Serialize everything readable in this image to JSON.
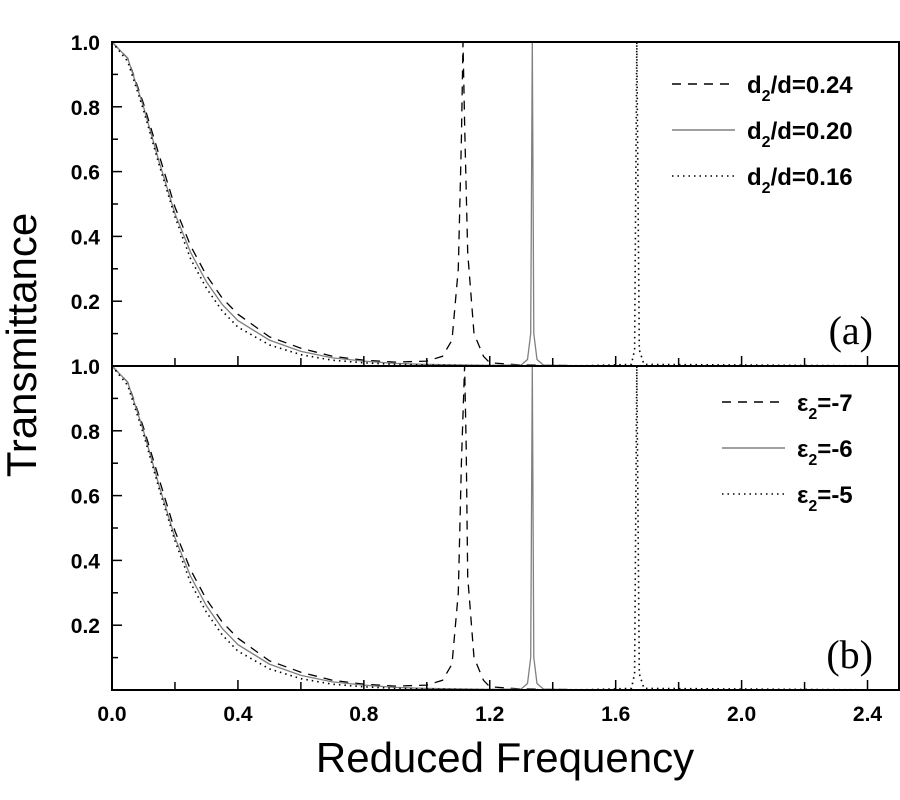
{
  "chart_data": {
    "type": "line",
    "xlabel": "Reduced Frequency",
    "ylabel": "Transmittance",
    "xlim": [
      0,
      2.5
    ],
    "x_ticks": [
      "0.0",
      "0.4",
      "0.8",
      "1.2",
      "1.6",
      "2.0",
      "2.4"
    ],
    "grid": false,
    "panels": [
      {
        "label": "(a)",
        "ylim": [
          0,
          1.0
        ],
        "y_ticks": [
          "0.2",
          "0.4",
          "0.6",
          "0.8",
          "1.0"
        ],
        "legend_placement": "top-right",
        "legend": [
          {
            "base": "d",
            "sub": "2",
            "rest": "/d=0.24",
            "style": "dashed"
          },
          {
            "base": "d",
            "sub": "2",
            "rest": "/d=0.20",
            "style": "solid"
          },
          {
            "base": "d",
            "sub": "2",
            "rest": "/d=0.16",
            "style": "dotted"
          }
        ],
        "series": [
          {
            "name": "d2/d=0.24",
            "style": "dashed",
            "color": "#000000",
            "x": [
              0,
              0.05,
              0.1,
              0.15,
              0.2,
              0.25,
              0.3,
              0.35,
              0.4,
              0.5,
              0.6,
              0.7,
              0.8,
              0.9,
              1.0,
              1.05,
              1.08,
              1.1,
              1.11,
              1.115,
              1.12,
              1.13,
              1.15,
              1.18,
              1.2,
              1.3,
              1.5,
              2.5
            ],
            "y": [
              1,
              0.95,
              0.81,
              0.65,
              0.49,
              0.37,
              0.28,
              0.21,
              0.16,
              0.09,
              0.055,
              0.03,
              0.018,
              0.012,
              0.015,
              0.03,
              0.08,
              0.3,
              0.7,
              1.0,
              0.75,
              0.35,
              0.1,
              0.03,
              0.01,
              0.003,
              0.001,
              0
            ]
          },
          {
            "name": "d2/d=0.20",
            "style": "solid",
            "color": "#808080",
            "x": [
              0,
              0.05,
              0.1,
              0.15,
              0.2,
              0.25,
              0.3,
              0.35,
              0.4,
              0.5,
              0.6,
              0.7,
              0.8,
              0.9,
              1.0,
              1.2,
              1.3,
              1.32,
              1.33,
              1.335,
              1.34,
              1.35,
              1.37,
              1.5,
              2.5
            ],
            "y": [
              1,
              0.95,
              0.8,
              0.63,
              0.47,
              0.35,
              0.26,
              0.19,
              0.14,
              0.08,
              0.045,
              0.025,
              0.015,
              0.008,
              0.005,
              0.002,
              0.003,
              0.02,
              0.1,
              1.0,
              0.1,
              0.02,
              0.003,
              0,
              0
            ]
          },
          {
            "name": "d2/d=0.16",
            "style": "dotted",
            "color": "#000000",
            "x": [
              0,
              0.05,
              0.1,
              0.15,
              0.2,
              0.25,
              0.3,
              0.35,
              0.4,
              0.5,
              0.6,
              0.7,
              0.8,
              0.9,
              1.0,
              1.2,
              1.5,
              1.65,
              1.66,
              1.667,
              1.675,
              1.69,
              2.5
            ],
            "y": [
              1,
              0.94,
              0.79,
              0.62,
              0.46,
              0.33,
              0.24,
              0.17,
              0.12,
              0.065,
              0.035,
              0.018,
              0.01,
              0.005,
              0.003,
              0.001,
              0.001,
              0.005,
              0.05,
              1.0,
              0.05,
              0.005,
              0
            ]
          }
        ]
      },
      {
        "label": "(b)",
        "ylim": [
          0,
          1.0
        ],
        "y_ticks": [
          "0.2",
          "0.4",
          "0.6",
          "0.8",
          "1.0"
        ],
        "legend_placement": "top-right",
        "legend": [
          {
            "base": "ε",
            "sub": "2",
            "rest": "=-7",
            "style": "dashed"
          },
          {
            "base": "ε",
            "sub": "2",
            "rest": "=-6",
            "style": "solid"
          },
          {
            "base": "ε",
            "sub": "2",
            "rest": "=-5",
            "style": "dotted"
          }
        ],
        "series": [
          {
            "name": "ε2=-7",
            "style": "dashed",
            "color": "#000000",
            "x": [
              0,
              0.05,
              0.1,
              0.15,
              0.2,
              0.25,
              0.3,
              0.35,
              0.4,
              0.5,
              0.6,
              0.7,
              0.8,
              0.9,
              1.0,
              1.05,
              1.08,
              1.1,
              1.11,
              1.12,
              1.125,
              1.13,
              1.15,
              1.18,
              1.2,
              1.3,
              1.5,
              2.5
            ],
            "y": [
              1,
              0.95,
              0.81,
              0.65,
              0.49,
              0.37,
              0.28,
              0.21,
              0.16,
              0.09,
              0.055,
              0.03,
              0.018,
              0.012,
              0.015,
              0.03,
              0.08,
              0.3,
              0.7,
              1.0,
              0.75,
              0.35,
              0.1,
              0.03,
              0.01,
              0.003,
              0.001,
              0
            ]
          },
          {
            "name": "ε2=-6",
            "style": "solid",
            "color": "#808080",
            "x": [
              0,
              0.05,
              0.1,
              0.15,
              0.2,
              0.25,
              0.3,
              0.35,
              0.4,
              0.5,
              0.6,
              0.7,
              0.8,
              0.9,
              1.0,
              1.2,
              1.3,
              1.32,
              1.33,
              1.335,
              1.34,
              1.35,
              1.37,
              1.5,
              2.5
            ],
            "y": [
              1,
              0.95,
              0.8,
              0.63,
              0.47,
              0.35,
              0.26,
              0.19,
              0.14,
              0.08,
              0.045,
              0.025,
              0.015,
              0.008,
              0.005,
              0.002,
              0.003,
              0.02,
              0.1,
              1.0,
              0.1,
              0.02,
              0.003,
              0,
              0
            ]
          },
          {
            "name": "ε2=-5",
            "style": "dotted",
            "color": "#000000",
            "x": [
              0,
              0.05,
              0.1,
              0.15,
              0.2,
              0.25,
              0.3,
              0.35,
              0.4,
              0.5,
              0.6,
              0.7,
              0.8,
              0.9,
              1.0,
              1.2,
              1.5,
              1.65,
              1.66,
              1.667,
              1.675,
              1.69,
              2.5
            ],
            "y": [
              1,
              0.94,
              0.79,
              0.62,
              0.46,
              0.33,
              0.24,
              0.17,
              0.12,
              0.065,
              0.035,
              0.018,
              0.01,
              0.005,
              0.003,
              0.001,
              0.001,
              0.005,
              0.05,
              1.0,
              0.05,
              0.005,
              0
            ]
          }
        ]
      }
    ]
  }
}
